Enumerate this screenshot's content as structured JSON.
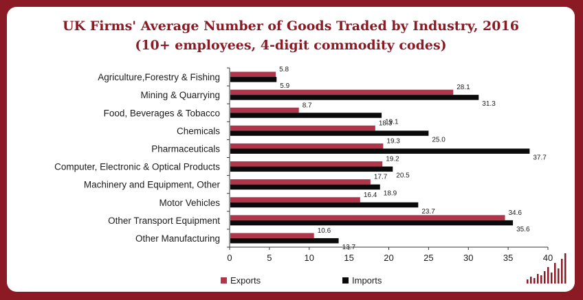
{
  "chart_data": {
    "type": "bar",
    "orientation": "horizontal",
    "title": "UK Firms' Average Number of Goods Traded by Industry, 2016",
    "subtitle": "(10+ employees, 4-digit commodity codes)",
    "categories": [
      "Agriculture,Forestry & Fishing",
      "Mining & Quarrying",
      "Food, Beverages & Tobacco",
      "Chemicals",
      "Pharmaceuticals",
      "Computer, Electronic & Optical Products",
      "Machinery and Equipment, Other",
      "Motor Vehicles",
      "Other Transport Equipment",
      "Other Manufacturing"
    ],
    "series": [
      {
        "name": "Exports",
        "color": "#b0344a",
        "values": [
          5.8,
          28.1,
          8.7,
          18.3,
          19.3,
          19.2,
          17.7,
          16.4,
          34.6,
          10.6
        ],
        "labels": [
          "5.8",
          "28.1",
          "8.7",
          "18.3",
          "19.3",
          "19.2",
          "17.7",
          "16.4",
          "34.6",
          "10.6"
        ]
      },
      {
        "name": "Imports",
        "color": "#0a0a0a",
        "values": [
          5.9,
          31.3,
          19.1,
          25.0,
          37.7,
          20.5,
          18.9,
          23.7,
          35.6,
          13.7
        ],
        "labels": [
          "5.9",
          "31.3",
          "19.1",
          "25.0",
          "37.7",
          "20.5",
          "18.9",
          "23.7",
          "35.6",
          "13.7"
        ]
      }
    ],
    "xlim": [
      0,
      40
    ],
    "xticks": [
      "0",
      "5",
      "10",
      "15",
      "20",
      "25",
      "30",
      "35",
      "40"
    ],
    "grid": false,
    "legend": "bottom"
  },
  "colors": {
    "background": "#8b1a24",
    "title": "#8b1a24",
    "exports": "#b0344a",
    "imports": "#0a0a0a"
  },
  "icons": {
    "logo": "bar-logo-icon"
  }
}
